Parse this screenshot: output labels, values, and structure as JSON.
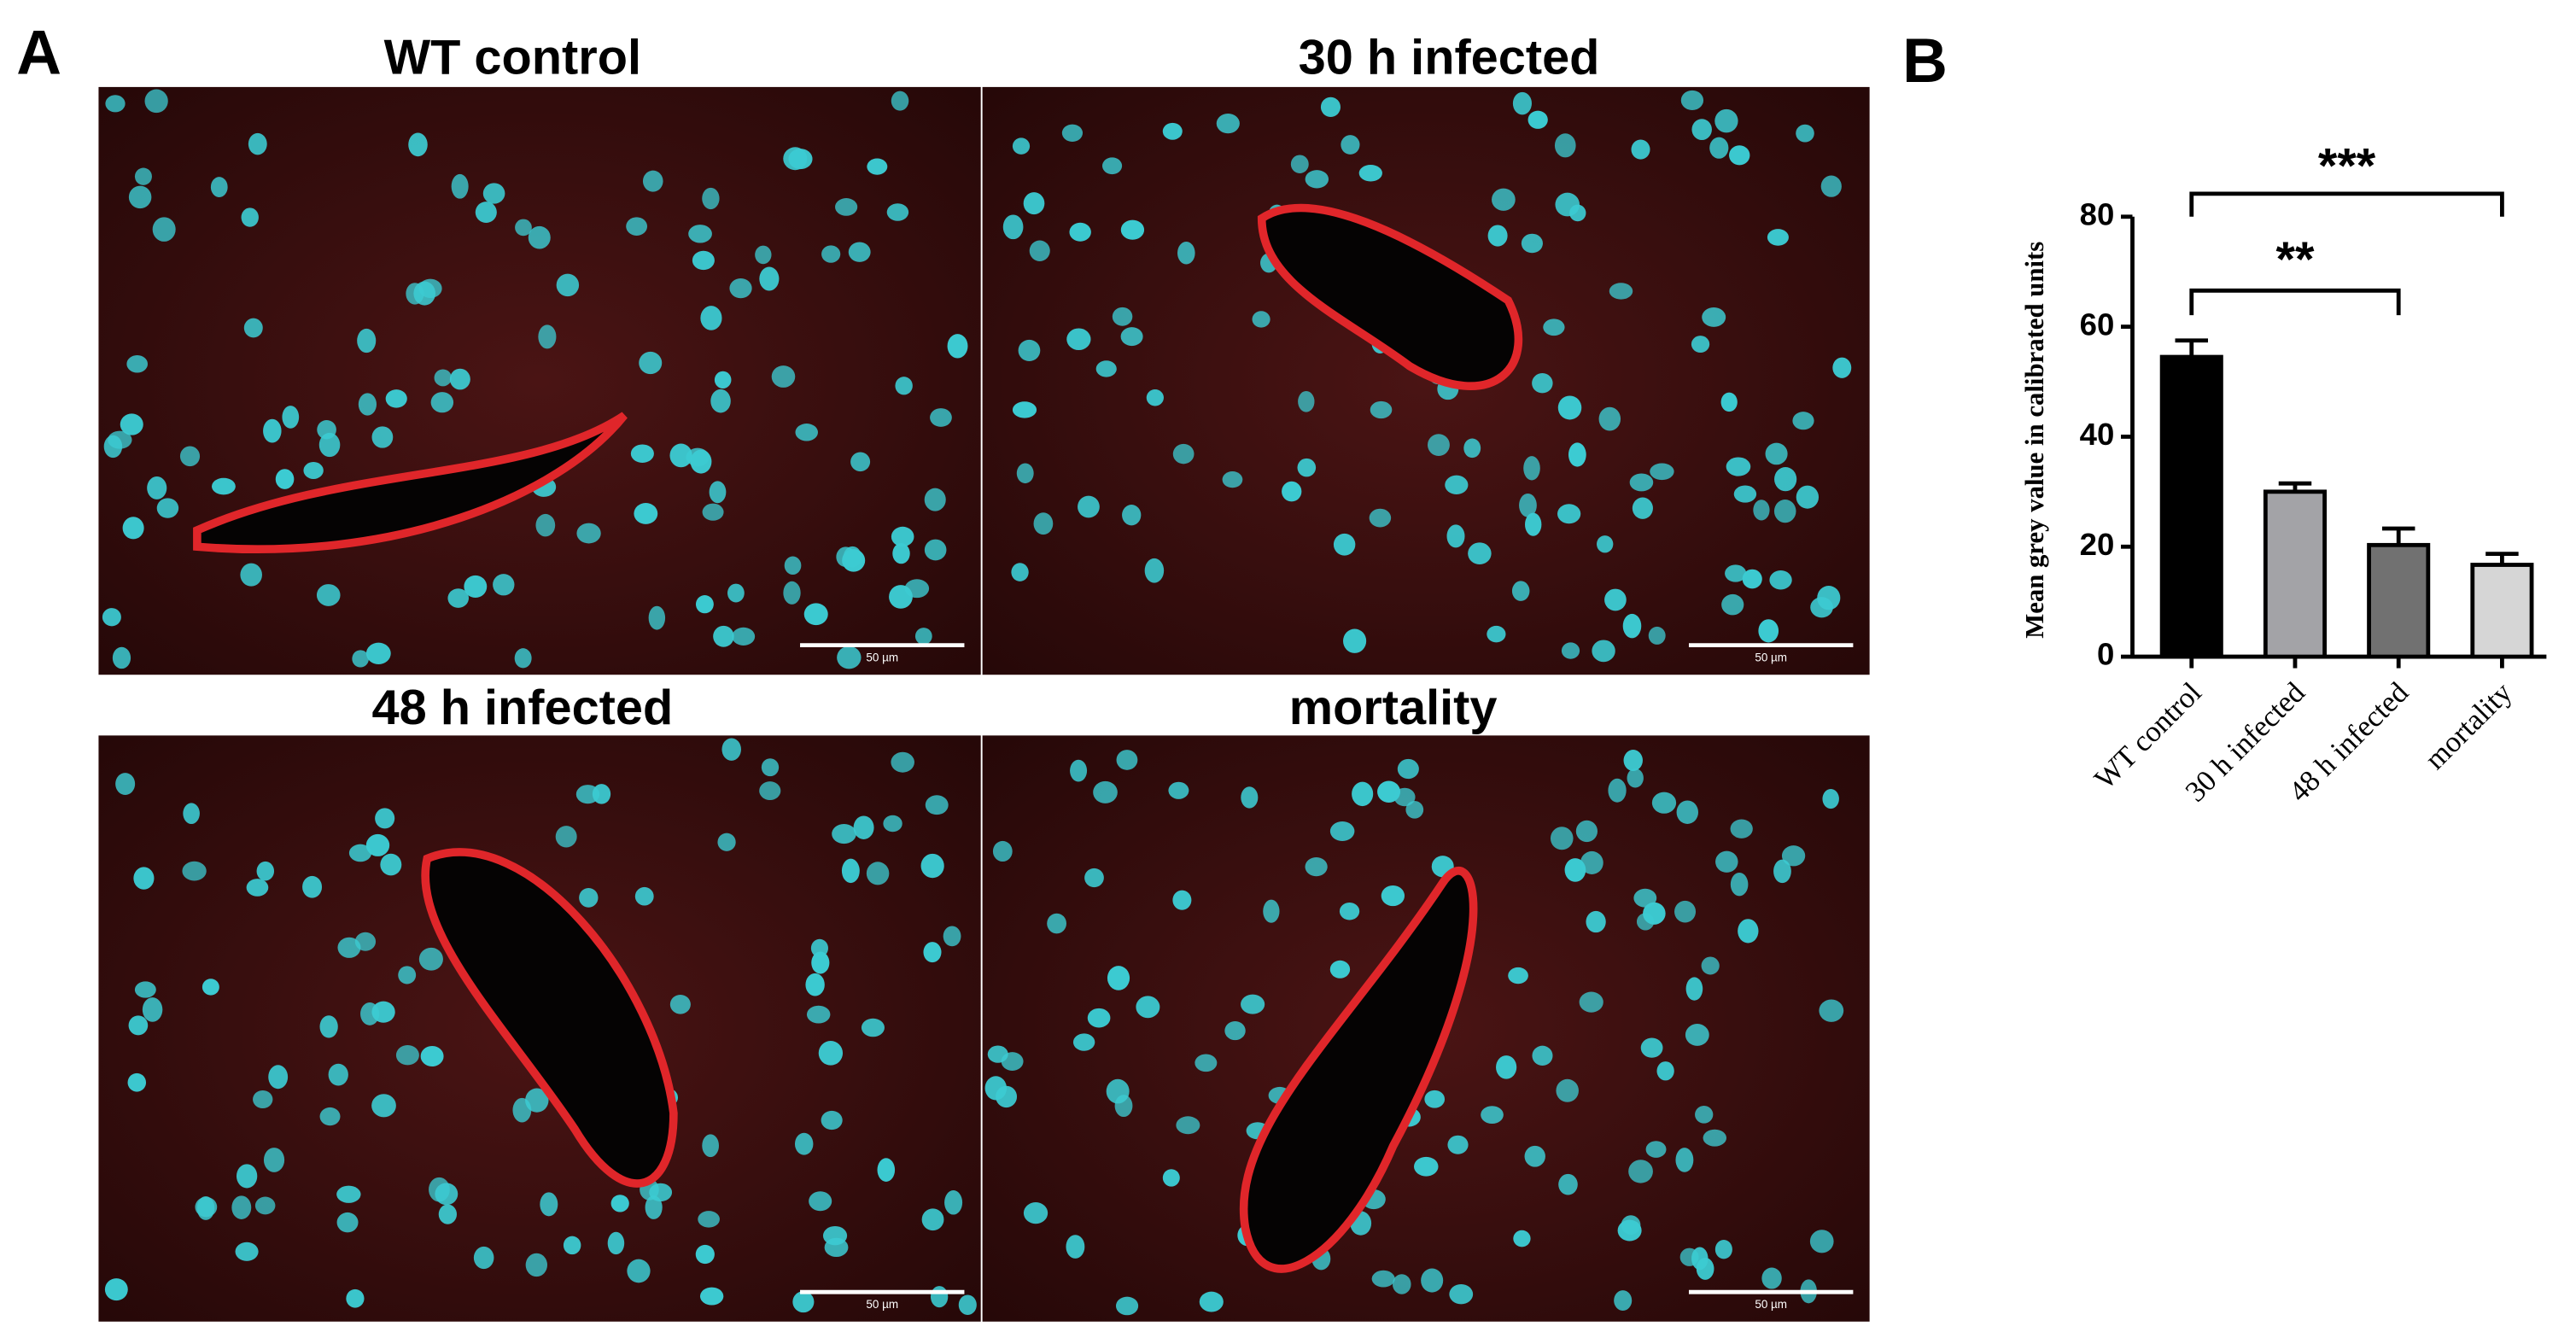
{
  "figure": {
    "panel_a": "A",
    "panel_b": "B",
    "images": [
      {
        "title": "WT control",
        "scale": "50 µm"
      },
      {
        "title": "30 h infected",
        "scale": "50 µm"
      },
      {
        "title": "48 h infected",
        "scale": "50 µm"
      },
      {
        "title": "mortality",
        "scale": "50 µm"
      }
    ]
  },
  "chart_data": {
    "type": "bar",
    "y_label": "Mean grey value in calibrated units",
    "categories": [
      "WT control",
      "30 h infected",
      "48 h infected",
      "mortality"
    ],
    "values": [
      54.5,
      30,
      20.3,
      16.7
    ],
    "errors": [
      3,
      1.5,
      3,
      2
    ],
    "colors": [
      "#000000",
      "#a3a3a7",
      "#717171",
      "#d6d6d6"
    ],
    "ylim": [
      0,
      80
    ],
    "yticks": [
      0,
      20,
      40,
      60,
      80
    ],
    "annotations": [
      "**",
      "***"
    ]
  }
}
